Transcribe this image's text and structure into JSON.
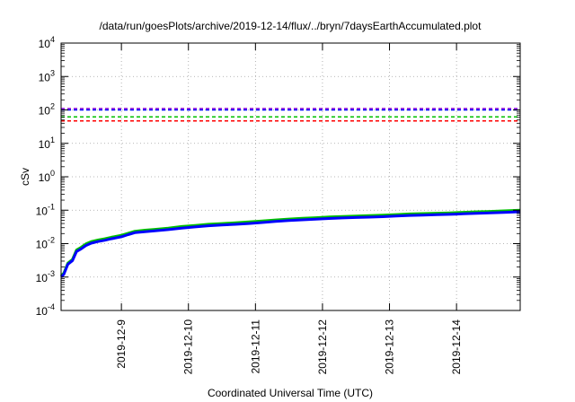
{
  "chart_data": {
    "type": "line",
    "title": "/data/run/goesPlots/archive/2019-12-14/flux/../bryn/7daysEarthAccumulated.plot",
    "xlabel": "Coordinated Universal Time (UTC)",
    "ylabel": "cSv",
    "yscale": "log",
    "xlim": [
      8.1,
      14.95
    ],
    "ylim": [
      0.0001,
      10000
    ],
    "grid": true,
    "x_ticks": [
      {
        "value": 9,
        "label": "2019-12-9"
      },
      {
        "value": 10,
        "label": "2019-12-10"
      },
      {
        "value": 11,
        "label": "2019-12-11"
      },
      {
        "value": 12,
        "label": "2019-12-12"
      },
      {
        "value": 13,
        "label": "2019-12-13"
      },
      {
        "value": 14,
        "label": "2019-12-14"
      }
    ],
    "y_ticks": [
      {
        "value": 0.0001,
        "base": "10",
        "exp": "-4"
      },
      {
        "value": 0.001,
        "base": "10",
        "exp": "-3"
      },
      {
        "value": 0.01,
        "base": "10",
        "exp": "-2"
      },
      {
        "value": 0.1,
        "base": "10",
        "exp": "-1"
      },
      {
        "value": 1,
        "base": "10",
        "exp": "0"
      },
      {
        "value": 10,
        "base": "10",
        "exp": "1"
      },
      {
        "value": 100,
        "base": "10",
        "exp": "2"
      },
      {
        "value": 1000,
        "base": "10",
        "exp": "3"
      },
      {
        "value": 10000,
        "base": "10",
        "exp": "4"
      }
    ],
    "thresholds": [
      {
        "value": 110,
        "color": "#9400d3"
      },
      {
        "value": 100,
        "color": "#0000ff"
      },
      {
        "value": 62,
        "color": "#00c000"
      },
      {
        "value": 47,
        "color": "#ff0000"
      }
    ],
    "series": [
      {
        "color": "#00c000",
        "x": [
          8.1,
          8.14,
          8.2,
          8.27,
          8.33,
          8.4,
          8.47,
          8.55,
          8.65,
          8.75,
          8.85,
          9.0,
          9.1,
          9.2,
          9.35,
          9.5,
          9.7,
          9.9,
          10.1,
          10.3,
          10.5,
          10.7,
          10.9,
          11.1,
          11.3,
          11.5,
          11.7,
          11.9,
          12.1,
          12.3,
          12.5,
          12.7,
          12.9,
          13.1,
          13.3,
          13.5,
          13.7,
          13.9,
          14.1,
          14.3,
          14.5,
          14.7,
          14.95
        ],
        "y": [
          0.0011,
          0.0013,
          0.0026,
          0.0034,
          0.0065,
          0.0078,
          0.0098,
          0.0115,
          0.0128,
          0.014,
          0.0155,
          0.0178,
          0.0205,
          0.0235,
          0.0252,
          0.0268,
          0.0292,
          0.0325,
          0.035,
          0.038,
          0.04,
          0.042,
          0.0445,
          0.0475,
          0.051,
          0.0545,
          0.0572,
          0.0598,
          0.0628,
          0.0652,
          0.067,
          0.0688,
          0.071,
          0.0742,
          0.0772,
          0.0792,
          0.0812,
          0.0835,
          0.0865,
          0.0895,
          0.0922,
          0.0955,
          0.1
        ]
      },
      {
        "color": "#0000ff",
        "x": [
          8.1,
          8.14,
          8.2,
          8.27,
          8.33,
          8.4,
          8.47,
          8.55,
          8.65,
          8.75,
          8.85,
          9.0,
          9.1,
          9.2,
          9.35,
          9.5,
          9.7,
          9.9,
          10.1,
          10.3,
          10.5,
          10.7,
          10.9,
          11.1,
          11.3,
          11.5,
          11.7,
          11.9,
          12.1,
          12.3,
          12.5,
          12.7,
          12.9,
          13.1,
          13.3,
          13.5,
          13.7,
          13.9,
          14.1,
          14.3,
          14.5,
          14.7,
          14.95
        ],
        "y": [
          0.001,
          0.0012,
          0.0024,
          0.0031,
          0.0058,
          0.007,
          0.0088,
          0.0103,
          0.0115,
          0.0126,
          0.014,
          0.016,
          0.0185,
          0.0212,
          0.0228,
          0.0242,
          0.0262,
          0.0292,
          0.0315,
          0.0342,
          0.036,
          0.0378,
          0.04,
          0.0428,
          0.046,
          0.049,
          0.0515,
          0.0538,
          0.0565,
          0.0587,
          0.0603,
          0.062,
          0.064,
          0.0668,
          0.0695,
          0.0713,
          0.0731,
          0.0752,
          0.0779,
          0.0806,
          0.083,
          0.086,
          0.09
        ]
      }
    ]
  }
}
